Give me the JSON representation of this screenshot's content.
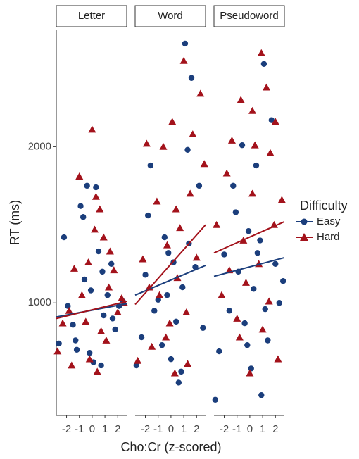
{
  "chart_data": {
    "type": "scatter",
    "x_label": "Cho:Cr (z-scored)",
    "y_label": "RT (ms)",
    "legend_title": "Difficulty",
    "legend_position": "right",
    "series": [
      {
        "name": "Easy",
        "color": "#1b3e7c",
        "marker": "circle"
      },
      {
        "name": "Hard",
        "color": "#a3121b",
        "marker": "triangle"
      }
    ],
    "xlim": [
      -2.8,
      2.7
    ],
    "xticks": [
      -2,
      -1,
      0,
      1,
      2
    ],
    "ylim": [
      280,
      2750
    ],
    "yticks": [
      1000,
      2000
    ],
    "facets": [
      {
        "title": "Letter",
        "series": [
          {
            "x": [
              -2.6,
              -2.2,
              -1.9,
              -1.5,
              -1.2,
              -0.9,
              -0.6,
              -0.4,
              -0.1,
              0.1,
              0.3,
              0.5,
              0.7,
              0.9,
              1.2,
              1.5,
              1.8,
              2.1,
              2.4,
              -0.7,
              -1.3,
              0.8,
              1.6,
              -0.2
            ],
            "values": [
              740,
              1420,
              980,
              860,
              700,
              1620,
              1150,
              1750,
              1080,
              620,
              1740,
              1330,
              600,
              920,
              1050,
              1250,
              830,
              980,
              1010,
              1550,
              760,
              1200,
              900,
              680
            ],
            "trend": {
              "x": [
                -2.8,
                2.7
              ],
              "values": [
                910,
                995
              ]
            }
          },
          {
            "x": [
              -2.7,
              -2.3,
              -1.8,
              -1.4,
              -1.0,
              -0.8,
              -0.5,
              -0.2,
              0.0,
              0.2,
              0.4,
              0.6,
              0.9,
              1.1,
              1.4,
              1.7,
              2.0,
              2.3,
              -1.6,
              0.3,
              1.3,
              -0.3,
              0.7,
              2.5
            ],
            "values": [
              690,
              870,
              950,
              1220,
              1810,
              1050,
              880,
              640,
              2110,
              1470,
              560,
              1600,
              1420,
              760,
              1330,
              1210,
              940,
              1030,
              600,
              1680,
              1100,
              1260,
              820,
              1000
            ],
            "trend": {
              "x": [
                -2.8,
                2.7
              ],
              "values": [
                900,
                1010
              ]
            }
          }
        ]
      },
      {
        "title": "Word",
        "series": [
          {
            "x": [
              -2.7,
              -2.3,
              -2.0,
              -1.6,
              -1.3,
              -1.0,
              -0.7,
              -0.5,
              -0.2,
              0.0,
              0.2,
              0.4,
              0.6,
              0.9,
              1.1,
              1.3,
              1.6,
              1.9,
              2.2,
              2.5,
              -1.8,
              -0.3,
              0.8,
              1.4
            ],
            "values": [
              600,
              780,
              1180,
              1880,
              950,
              1020,
              730,
              1420,
              1320,
              640,
              1260,
              880,
              490,
              1100,
              2660,
              1980,
              2440,
              1230,
              1750,
              840,
              1560,
              1050,
              560,
              1380
            ],
            "trend": {
              "x": [
                -2.8,
                2.7
              ],
              "values": [
                1050,
                1240
              ]
            }
          },
          {
            "x": [
              -2.6,
              -2.2,
              -1.9,
              -1.5,
              -1.1,
              -0.9,
              -0.6,
              -0.3,
              -0.1,
              0.1,
              0.3,
              0.5,
              0.7,
              1.0,
              1.2,
              1.5,
              1.7,
              2.0,
              2.3,
              2.6,
              -1.7,
              0.4,
              1.3,
              -0.4
            ],
            "values": [
              630,
              1280,
              2020,
              720,
              1650,
              1050,
              2000,
              1370,
              870,
              2160,
              550,
              1160,
              1480,
              2550,
              940,
              1700,
              2080,
              1290,
              2340,
              1890,
              1100,
              1600,
              610,
              780
            ],
            "trend": {
              "x": [
                -2.8,
                2.7
              ],
              "values": [
                990,
                1500
              ]
            }
          }
        ]
      },
      {
        "title": "Pseudoword",
        "series": [
          {
            "x": [
              -2.7,
              -2.4,
              -2.0,
              -1.6,
              -1.3,
              -0.9,
              -0.6,
              -0.4,
              -0.1,
              0.1,
              0.3,
              0.6,
              0.9,
              1.1,
              1.4,
              1.7,
              2.0,
              2.3,
              2.6,
              -1.1,
              0.5,
              1.2,
              -0.2,
              0.8
            ],
            "values": [
              380,
              690,
              1310,
              950,
              1750,
              1200,
              2010,
              870,
              1460,
              580,
              1090,
              1320,
              410,
              2530,
              760,
              2170,
              1250,
              1000,
              1140,
              1580,
              1880,
              960,
              730,
              1400
            ],
            "trend": {
              "x": [
                -2.8,
                2.7
              ],
              "values": [
                1170,
                1290
              ]
            }
          },
          {
            "x": [
              -2.6,
              -2.2,
              -1.8,
              -1.4,
              -1.0,
              -0.7,
              -0.5,
              -0.3,
              0.0,
              0.2,
              0.4,
              0.7,
              0.9,
              1.0,
              1.3,
              1.6,
              1.9,
              2.2,
              2.5,
              -1.6,
              0.2,
              1.5,
              -0.8,
              2.0
            ],
            "values": [
              1500,
              1050,
              1830,
              2040,
              900,
              2300,
              1400,
              1130,
              550,
              1700,
              2010,
              1250,
              2600,
              830,
              2380,
              1960,
              1500,
              640,
              1660,
              1210,
              2230,
              1010,
              780,
              2160
            ],
            "trend": {
              "x": [
                -2.8,
                2.7
              ],
              "values": [
                1320,
                1520
              ]
            }
          }
        ]
      }
    ]
  }
}
